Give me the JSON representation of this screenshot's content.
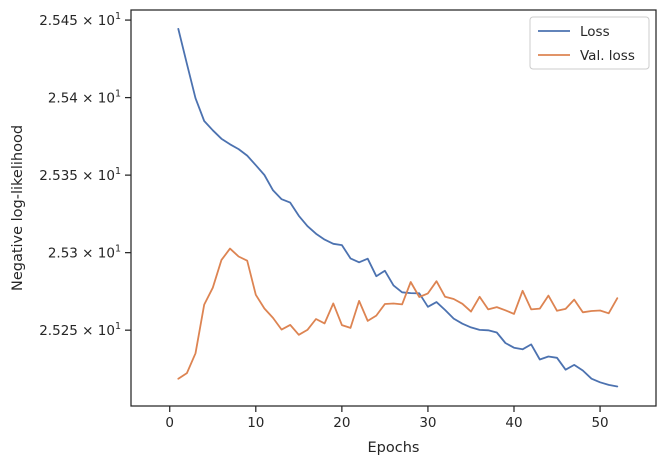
{
  "chart_data": {
    "type": "line",
    "title": "",
    "xlabel": "Epochs",
    "ylabel": "Negative log-likelihood",
    "xlim": [
      -4.5,
      56.5
    ],
    "ylim": [
      25.2011,
      25.4565
    ],
    "x_ticks": [
      0,
      10,
      20,
      30,
      40,
      50
    ],
    "x_tick_labels": [
      "0",
      "10",
      "20",
      "30",
      "40",
      "50"
    ],
    "y_ticks": [
      25.25,
      25.3,
      25.35,
      25.4,
      25.45
    ],
    "y_tick_mantissas": [
      "2.525",
      "2.53",
      "2.535",
      "2.54",
      "2.545"
    ],
    "y_tick_base": "10",
    "y_tick_exponent": "1",
    "y_tick_times": "×",
    "grid": false,
    "legend_position": "top-right",
    "x": [
      1,
      2,
      3,
      4,
      5,
      6,
      7,
      8,
      9,
      10,
      11,
      12,
      13,
      14,
      15,
      16,
      17,
      18,
      19,
      20,
      21,
      22,
      23,
      24,
      25,
      26,
      27,
      28,
      29,
      30,
      31,
      32,
      33,
      34,
      35,
      36,
      37,
      38,
      39,
      40,
      41,
      42,
      43,
      44,
      45,
      46,
      47,
      48,
      49,
      50,
      51,
      52
    ],
    "series": [
      {
        "name": "Loss",
        "color": "#4c72b0",
        "values": [
          25.4443,
          25.4218,
          25.3996,
          25.3849,
          25.3789,
          25.3735,
          25.3699,
          25.3668,
          25.3626,
          25.3564,
          25.3501,
          25.3402,
          25.3345,
          25.3323,
          25.3238,
          25.3171,
          25.3122,
          25.3084,
          25.3057,
          25.3049,
          25.2963,
          25.2938,
          25.2961,
          25.2848,
          25.2883,
          25.2789,
          25.2744,
          25.2739,
          25.2738,
          25.2651,
          25.2681,
          25.263,
          25.2575,
          25.2542,
          25.2518,
          25.2502,
          25.2499,
          25.2485,
          25.2417,
          25.2387,
          25.2377,
          25.2408,
          25.2311,
          25.233,
          25.2322,
          25.2245,
          25.2276,
          25.224,
          25.2187,
          25.2164,
          25.2147,
          25.2137
        ]
      },
      {
        "name": "Val. loss",
        "color": "#dd8452",
        "values": [
          25.2187,
          25.2223,
          25.2351,
          25.2665,
          25.2774,
          25.2952,
          25.3026,
          25.2975,
          25.2948,
          25.2728,
          25.264,
          25.2579,
          25.2504,
          25.2534,
          25.247,
          25.2502,
          25.2572,
          25.2544,
          25.2673,
          25.2533,
          25.2515,
          25.2689,
          25.256,
          25.2594,
          25.2669,
          25.2672,
          25.2666,
          25.2811,
          25.2714,
          25.2737,
          25.2816,
          25.2715,
          25.2701,
          25.267,
          25.262,
          25.2715,
          25.2634,
          25.2649,
          25.2628,
          25.2605,
          25.2754,
          25.2634,
          25.2639,
          25.2723,
          25.2625,
          25.2637,
          25.2697,
          25.2615,
          25.2624,
          25.2627,
          25.2609,
          25.2706
        ]
      }
    ]
  }
}
